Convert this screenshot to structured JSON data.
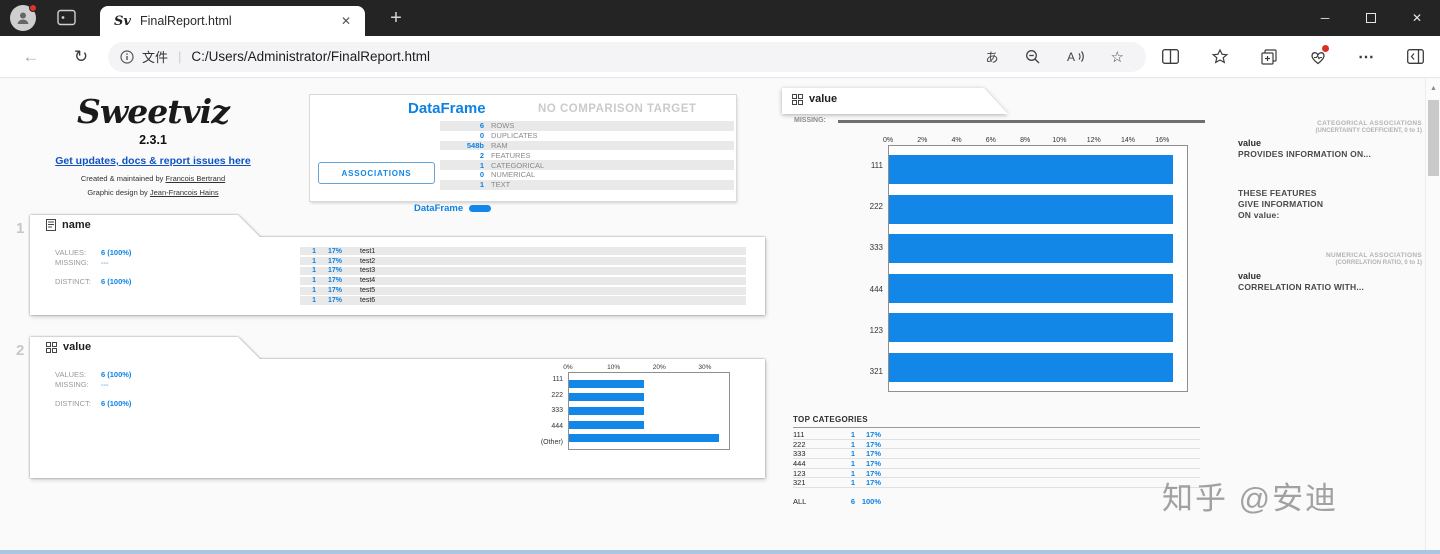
{
  "colors": {
    "accent": "#0d82e2",
    "bar": "#1287e8",
    "titlebar": "#242424"
  },
  "browser": {
    "tab_title": "FinalReport.html",
    "url": "C:/Users/Administrator/FinalReport.html",
    "scheme_label": "文件",
    "favicon_glyph": "Sv",
    "translate_glyph": "あ"
  },
  "logo": {
    "brand": "Sweetviz",
    "version": "2.3.1",
    "updates_link": "Get updates, docs & report issues here",
    "created_prefix": "Created & maintained by ",
    "created_name": "Francois Bertrand",
    "design_prefix": "Graphic design by ",
    "design_name": "Jean-Francois Hains"
  },
  "summary": {
    "title": "DataFrame",
    "no_comparison": "NO COMPARISON TARGET",
    "stats": [
      {
        "value": "6",
        "label": "ROWS"
      },
      {
        "value": "0",
        "label": "DUPLICATES"
      },
      {
        "value": "548b",
        "label": "RAM"
      },
      {
        "value": "2",
        "label": "FEATURES"
      },
      {
        "value": "1",
        "label": "CATEGORICAL"
      },
      {
        "value": "0",
        "label": "NUMERICAL"
      },
      {
        "value": "1",
        "label": "TEXT"
      }
    ],
    "associations_button": "ASSOCIATIONS",
    "tab_label": "DataFrame"
  },
  "features": [
    {
      "index": "1",
      "title": "name",
      "values_label": "VALUES:",
      "values": "6 (100%)",
      "missing_label": "MISSING:",
      "missing": "---",
      "distinct_label": "DISTINCT:",
      "distinct": "6 (100%)",
      "rows": [
        {
          "count": "1",
          "pct": "17%",
          "label": "test1"
        },
        {
          "count": "1",
          "pct": "17%",
          "label": "test2"
        },
        {
          "count": "1",
          "pct": "17%",
          "label": "test3"
        },
        {
          "count": "1",
          "pct": "17%",
          "label": "test4"
        },
        {
          "count": "1",
          "pct": "17%",
          "label": "test5"
        },
        {
          "count": "1",
          "pct": "17%",
          "label": "test6"
        }
      ]
    },
    {
      "index": "2",
      "title": "value",
      "values_label": "VALUES:",
      "values": "6 (100%)",
      "missing_label": "MISSING:",
      "missing": "---",
      "distinct_label": "DISTINCT:",
      "distinct": "6 (100%)"
    }
  ],
  "detail": {
    "title": "value",
    "missing_label": "MISSING:",
    "top_categories_title": "TOP CATEGORIES",
    "top_categories": [
      {
        "label": "111",
        "count": "1",
        "pct": "17%"
      },
      {
        "label": "222",
        "count": "1",
        "pct": "17%"
      },
      {
        "label": "333",
        "count": "1",
        "pct": "17%"
      },
      {
        "label": "444",
        "count": "1",
        "pct": "17%"
      },
      {
        "label": "123",
        "count": "1",
        "pct": "17%"
      },
      {
        "label": "321",
        "count": "1",
        "pct": "17%"
      }
    ],
    "total": {
      "label": "ALL",
      "count": "6",
      "pct": "100%"
    }
  },
  "associations_panel": {
    "categorical_title": "CATEGORICAL ASSOCIATIONS",
    "categorical_subtitle": "(UNCERTAINTY COEFFICIENT, 0 to 1)",
    "provides_feature": "value",
    "provides_text": "PROVIDES INFORMATION ON...",
    "gives_line1": "THESE FEATURES",
    "gives_line2": "GIVE INFORMATION",
    "gives_line3": "ON value:",
    "numerical_title": "NUMERICAL ASSOCIATIONS",
    "numerical_subtitle": "(CORRELATION RATIO, 0 to 1)",
    "correlation_feature": "value",
    "correlation_text": "CORRELATION RATIO WITH..."
  },
  "watermark": "知乎 @安迪",
  "chart_data": [
    {
      "type": "bar",
      "orientation": "horizontal",
      "name": "value-mini-distribution",
      "categories": [
        "111",
        "222",
        "333",
        "444",
        "(Other)"
      ],
      "values": [
        16.7,
        16.7,
        16.7,
        16.7,
        33.3
      ],
      "xticks": [
        "0%",
        "10%",
        "20%",
        "30%"
      ],
      "xtick_values": [
        0,
        10,
        20,
        30
      ],
      "xlim": [
        0,
        35.5
      ]
    },
    {
      "type": "bar",
      "orientation": "horizontal",
      "name": "value-distribution",
      "categories": [
        "111",
        "222",
        "333",
        "444",
        "123",
        "321"
      ],
      "values": [
        16.7,
        16.7,
        16.7,
        16.7,
        16.7,
        16.7
      ],
      "xticks": [
        "0%",
        "2%",
        "4%",
        "6%",
        "8%",
        "10%",
        "12%",
        "14%",
        "16%"
      ],
      "xtick_values": [
        0,
        2,
        4,
        6,
        8,
        10,
        12,
        14,
        16
      ],
      "xlim": [
        0,
        17.5
      ]
    }
  ]
}
